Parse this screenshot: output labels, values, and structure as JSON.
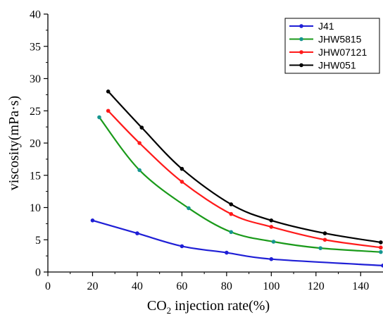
{
  "chart_data": {
    "type": "line",
    "xlabel": "CO",
    "xlabel_sub": "2",
    "xlabel_rest": " injection rate(%)",
    "ylabel": "viscosity(mPa·s)",
    "xlim": [
      0,
      150
    ],
    "ylim": [
      0,
      40
    ],
    "xticks": [
      0,
      20,
      40,
      60,
      80,
      100,
      120,
      140
    ],
    "yticks": [
      0,
      5,
      10,
      15,
      20,
      25,
      30,
      35,
      40
    ],
    "grid": false,
    "legend_position": "top-right",
    "series": [
      {
        "name": "J41",
        "color": "#1f1fd6",
        "x": [
          20,
          40,
          60,
          80,
          100,
          150
        ],
        "y": [
          8,
          6,
          4,
          3,
          2,
          1
        ]
      },
      {
        "name": "JHW5815",
        "color": "#1a9a1a",
        "marker_color": "#15958f",
        "x": [
          23,
          41,
          63,
          82,
          101,
          122,
          149
        ],
        "y": [
          24,
          15.8,
          9.9,
          6.2,
          4.7,
          3.7,
          3.1
        ]
      },
      {
        "name": "JHW07121",
        "color": "#ff1a1a",
        "x": [
          27,
          41,
          60,
          82,
          100,
          124,
          149
        ],
        "y": [
          25,
          20,
          14,
          9,
          7,
          5,
          3.8
        ]
      },
      {
        "name": "JHW051",
        "color": "#000000",
        "x": [
          27,
          42,
          60,
          82,
          100,
          124,
          149
        ],
        "y": [
          28,
          22.4,
          16,
          10.5,
          8,
          6,
          4.6
        ]
      }
    ]
  }
}
